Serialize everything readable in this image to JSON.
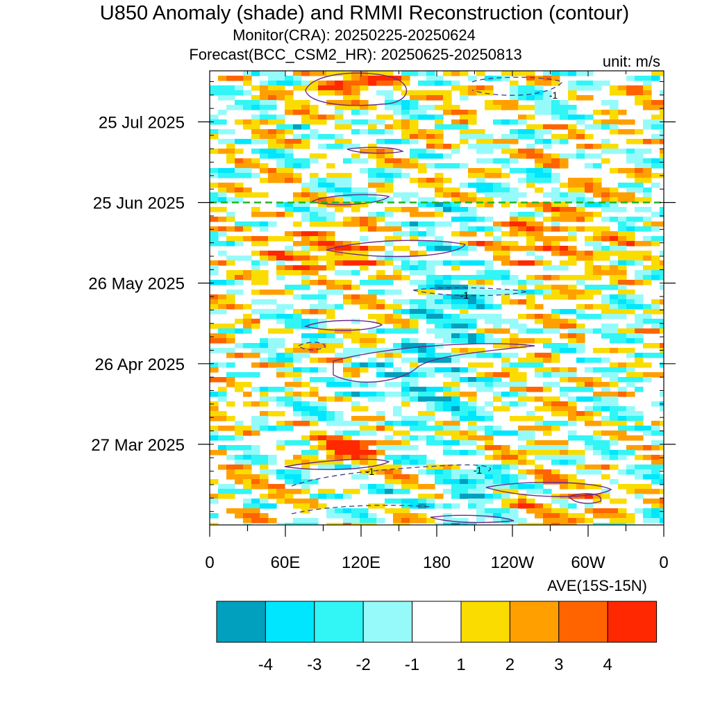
{
  "header": {
    "title": "U850 Anomaly (shade) and RMMI Reconstruction (contour)",
    "monitor": "Monitor(CRA): 20250225-20250624",
    "forecast": "Forecast(BCC_CSM2_HR): 20250625-20250813",
    "unit": "unit: m/s"
  },
  "chart_data": {
    "type": "heatmap",
    "title": "U850 Anomaly (shade) and RMMI Reconstruction (contour)",
    "subtitle": [
      "Monitor(CRA): 20250225-20250624",
      "Forecast(BCC_CSM2_HR): 20250625-20250813"
    ],
    "unit": "unit: m/s",
    "xlabel": "AVE(15S-15N)",
    "x_ticks": [
      {
        "lon": 0,
        "label": "0"
      },
      {
        "lon": 60,
        "label": "60E"
      },
      {
        "lon": 120,
        "label": "120E"
      },
      {
        "lon": 180,
        "label": "180"
      },
      {
        "lon": 240,
        "label": "120W"
      },
      {
        "lon": 300,
        "label": "60W"
      },
      {
        "lon": 360,
        "label": "0"
      }
    ],
    "xlim": [
      0,
      360
    ],
    "ylim": [
      "2025-02-25",
      "2025-08-13"
    ],
    "y_ticks": [
      {
        "date": "2025-03-27",
        "label": "27 Mar 2025"
      },
      {
        "date": "2025-04-26",
        "label": "26 Apr 2025"
      },
      {
        "date": "2025-05-26",
        "label": "26 May 2025"
      },
      {
        "date": "2025-06-25",
        "label": "25 Jun 2025"
      },
      {
        "date": "2025-07-25",
        "label": "25 Jul 2025"
      }
    ],
    "forecast_start": "2025-06-25",
    "colorbar": {
      "labels": [
        "-4",
        "-3",
        "-2",
        "-1",
        "1",
        "2",
        "3",
        "4"
      ],
      "colors": [
        "#00A0BE",
        "#00E6FF",
        "#32F5F5",
        "#96FAFA",
        "#FFFFFF",
        "#FADC00",
        "#FFA000",
        "#FF6400",
        "#FF2800"
      ]
    },
    "contour_labels": [
      "-1",
      "-1",
      "-1",
      "-1"
    ],
    "anomaly_features": [
      {
        "lon": [
          90,
          150
        ],
        "date": [
          "2025-08-02",
          "2025-08-13"
        ],
        "value": 3.5
      },
      {
        "lon": [
          90,
          140
        ],
        "date": [
          "2025-03-22",
          "2025-03-30"
        ],
        "value": 4.2
      },
      {
        "lon": [
          180,
          240
        ],
        "date": [
          "2025-02-25",
          "2025-03-15"
        ],
        "value": -3.8
      },
      {
        "lon": [
          210,
          290
        ],
        "date": [
          "2025-02-25",
          "2025-03-10"
        ],
        "value": 3.0
      },
      {
        "lon": [
          200,
          300
        ],
        "date": [
          "2025-05-30",
          "2025-06-20"
        ],
        "value": 2.6
      },
      {
        "lon": [
          60,
          150
        ],
        "date": [
          "2025-05-28",
          "2025-06-15"
        ],
        "value": 2.8
      },
      {
        "lon": [
          150,
          230
        ],
        "date": [
          "2025-05-10",
          "2025-06-20"
        ],
        "value": -2.5
      },
      {
        "lon": [
          120,
          200
        ],
        "date": [
          "2025-04-01",
          "2025-05-05"
        ],
        "value": -2.0
      }
    ]
  }
}
